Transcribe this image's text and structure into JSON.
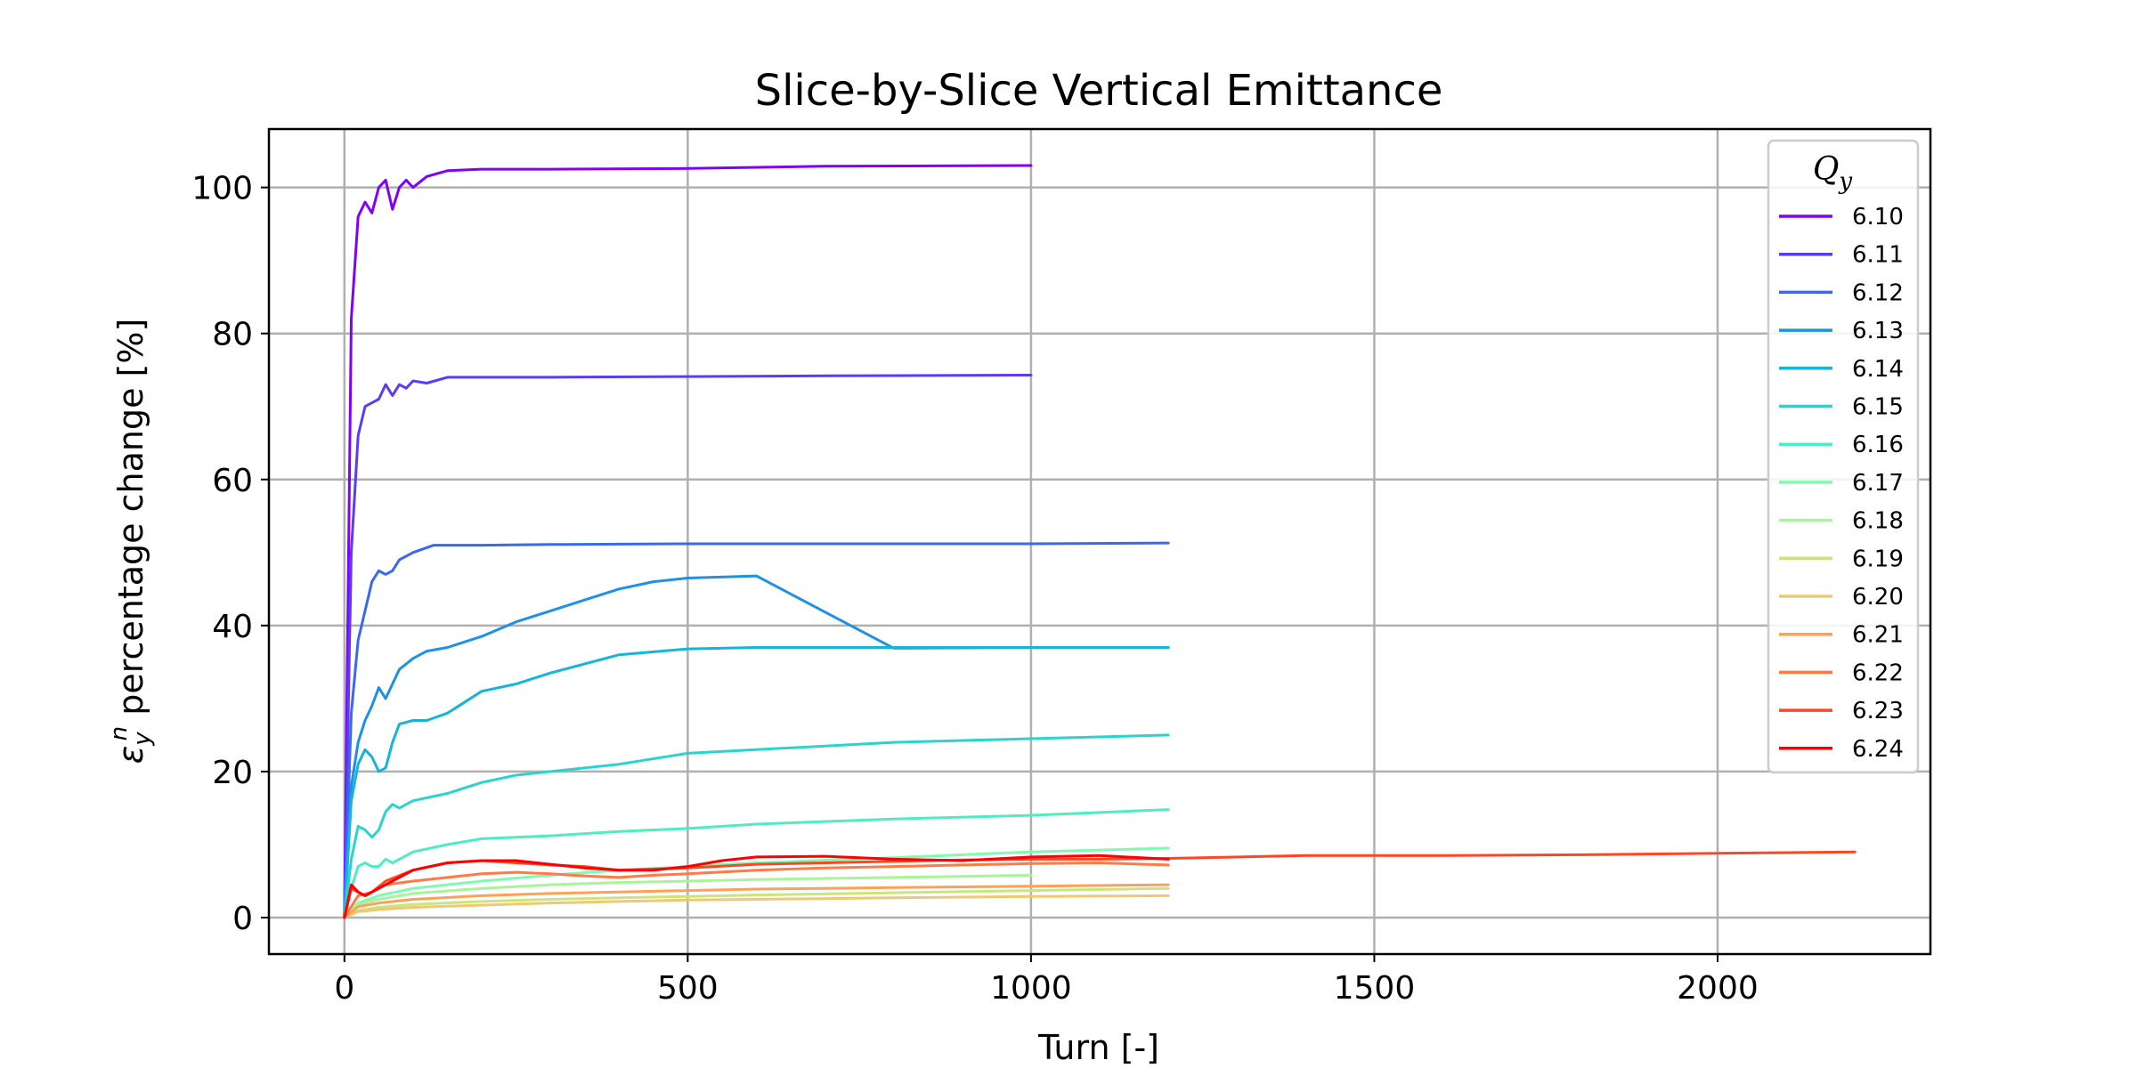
{
  "chart_data": {
    "type": "line",
    "title": "Slice-by-Slice Vertical Emittance",
    "xlabel": "Turn [-]",
    "ylabel_main": "ε",
    "ylabel_sub": "y",
    "ylabel_sup": "n",
    "ylabel_rest": " percentage change [%]",
    "xlim": [
      -110,
      2310
    ],
    "ylim": [
      -5,
      108
    ],
    "grid": true,
    "x_ticks": [
      0,
      500,
      1000,
      1500,
      2000
    ],
    "y_ticks": [
      0,
      20,
      40,
      60,
      80,
      100
    ],
    "legend": {
      "placement": "top-right",
      "title_main": "Q",
      "title_sub": "y"
    },
    "series": [
      {
        "name": "6.10",
        "color": "#8000ff",
        "x": [
          0,
          10,
          20,
          30,
          40,
          50,
          60,
          70,
          80,
          90,
          100,
          120,
          150,
          200,
          300,
          500,
          700,
          1000
        ],
        "y": [
          0,
          82,
          96,
          98,
          96.5,
          100,
          101,
          97,
          100,
          101,
          100,
          101.5,
          102.3,
          102.5,
          102.5,
          102.6,
          102.9,
          103
        ]
      },
      {
        "name": "6.11",
        "color": "#5a3bfa",
        "x": [
          0,
          10,
          20,
          30,
          40,
          50,
          60,
          70,
          80,
          90,
          100,
          120,
          150,
          200,
          300,
          500,
          700,
          1000
        ],
        "y": [
          0,
          50,
          66,
          70,
          70.5,
          71,
          73,
          71.5,
          73,
          72.5,
          73.5,
          73.2,
          74,
          74,
          74,
          74.1,
          74.2,
          74.3
        ]
      },
      {
        "name": "6.12",
        "color": "#3a68f0",
        "x": [
          0,
          10,
          20,
          30,
          40,
          50,
          60,
          70,
          80,
          100,
          130,
          150,
          200,
          300,
          500,
          700,
          1000,
          1200
        ],
        "y": [
          0,
          28,
          38,
          42,
          46,
          47.5,
          47,
          47.5,
          49,
          50,
          51,
          51,
          51,
          51.1,
          51.2,
          51.2,
          51.2,
          51.3
        ]
      },
      {
        "name": "6.13",
        "color": "#1e90e6",
        "x": [
          0,
          10,
          20,
          30,
          40,
          50,
          60,
          70,
          80,
          100,
          120,
          150,
          200,
          250,
          300,
          350,
          400,
          450,
          500,
          600,
          800,
          1000,
          1200
        ],
        "y": [
          0,
          18,
          24,
          27,
          29,
          31.5,
          30,
          32,
          34,
          35.5,
          36.5,
          37,
          38.5,
          40.5,
          42,
          43.5,
          45,
          46,
          46.5,
          46.8,
          36.9,
          37,
          37
        ]
      },
      {
        "name": "6.14",
        "color": "#16b4da",
        "x": [
          0,
          10,
          20,
          30,
          40,
          50,
          60,
          70,
          80,
          100,
          120,
          150,
          200,
          250,
          300,
          400,
          500,
          600,
          800,
          1000,
          1200
        ],
        "y": [
          0,
          16,
          21,
          23,
          22,
          20,
          20.5,
          24,
          26.5,
          27,
          27,
          28,
          31,
          32,
          33.5,
          36,
          36.8,
          37,
          37,
          37,
          37
        ]
      },
      {
        "name": "6.15",
        "color": "#2ad4cc",
        "x": [
          0,
          10,
          20,
          30,
          40,
          50,
          60,
          70,
          80,
          100,
          150,
          200,
          250,
          300,
          400,
          500,
          600,
          800,
          1000,
          1200
        ],
        "y": [
          0,
          8,
          12.5,
          12,
          11,
          12,
          14.5,
          15.5,
          15,
          16,
          17,
          18.5,
          19.5,
          20,
          21,
          22.5,
          23,
          24,
          24.5,
          25
        ]
      },
      {
        "name": "6.16",
        "color": "#4eecc0",
        "x": [
          0,
          10,
          20,
          30,
          40,
          50,
          60,
          70,
          80,
          100,
          150,
          200,
          300,
          400,
          500,
          600,
          800,
          1000,
          1200
        ],
        "y": [
          0,
          4,
          7,
          7.5,
          7,
          7,
          8,
          7.5,
          8,
          9,
          10,
          10.8,
          11.2,
          11.8,
          12.2,
          12.8,
          13.5,
          14,
          14.8
        ]
      },
      {
        "name": "6.17",
        "color": "#7ffab0",
        "x": [
          0,
          20,
          50,
          100,
          200,
          300,
          400,
          500,
          600,
          800,
          1000,
          1200
        ],
        "y": [
          0,
          2,
          3,
          4,
          5,
          5.8,
          6.5,
          7,
          7.5,
          8.2,
          9,
          9.5
        ]
      },
      {
        "name": "6.18",
        "color": "#a8f49a",
        "x": [
          0,
          20,
          50,
          100,
          200,
          300,
          400,
          500,
          600,
          800,
          1000
        ],
        "y": [
          0,
          1.8,
          2.5,
          3.3,
          4,
          4.5,
          4.8,
          5,
          5.2,
          5.5,
          5.8
        ]
      },
      {
        "name": "6.19",
        "color": "#cce47c",
        "x": [
          0,
          20,
          50,
          100,
          200,
          300,
          400,
          500,
          600,
          800,
          1000,
          1200
        ],
        "y": [
          0,
          1,
          1.4,
          1.8,
          2.2,
          2.5,
          2.7,
          2.9,
          3.1,
          3.4,
          3.7,
          4
        ]
      },
      {
        "name": "6.20",
        "color": "#f0c872",
        "x": [
          0,
          20,
          50,
          100,
          200,
          300,
          400,
          500,
          600,
          800,
          1000,
          1200
        ],
        "y": [
          0,
          0.8,
          1.1,
          1.4,
          1.7,
          2,
          2.2,
          2.4,
          2.5,
          2.7,
          2.9,
          3
        ]
      },
      {
        "name": "6.21",
        "color": "#ffa057",
        "x": [
          0,
          20,
          50,
          100,
          200,
          300,
          400,
          500,
          600,
          800,
          1000,
          1200
        ],
        "y": [
          0,
          1.5,
          2,
          2.5,
          3,
          3.3,
          3.5,
          3.7,
          3.9,
          4.1,
          4.3,
          4.5
        ]
      },
      {
        "name": "6.22",
        "color": "#ff7a45",
        "x": [
          0,
          20,
          40,
          60,
          100,
          150,
          200,
          250,
          300,
          350,
          400,
          450,
          500,
          600,
          700,
          800,
          900,
          1000,
          1100,
          1200
        ],
        "y": [
          0,
          3,
          3.5,
          4.5,
          5,
          5.5,
          6,
          6.2,
          6,
          5.7,
          5.5,
          5.8,
          6,
          6.5,
          6.8,
          7,
          7.2,
          7.4,
          7.5,
          7.2
        ]
      },
      {
        "name": "6.23",
        "color": "#ff4622",
        "x": [
          0,
          10,
          20,
          30,
          40,
          60,
          100,
          150,
          200,
          250,
          300,
          350,
          400,
          500,
          600,
          700,
          800,
          900,
          1000,
          1100,
          1200,
          1400,
          1600,
          1800,
          2000,
          2200
        ],
        "y": [
          0,
          4,
          3.5,
          3,
          3.5,
          5,
          6.5,
          7.5,
          7.8,
          7.5,
          7.2,
          7,
          6.5,
          6.8,
          7.3,
          7.5,
          7.7,
          7.9,
          8,
          8,
          8.1,
          8.5,
          8.5,
          8.6,
          8.8,
          9
        ]
      },
      {
        "name": "6.24",
        "color": "#ff0000",
        "x": [
          0,
          10,
          20,
          30,
          40,
          60,
          100,
          150,
          200,
          250,
          300,
          350,
          400,
          450,
          500,
          550,
          600,
          700,
          800,
          900,
          1000,
          1100,
          1200
        ],
        "y": [
          0,
          4.5,
          3.5,
          3,
          3.5,
          4.5,
          6.5,
          7.5,
          7.8,
          7.8,
          7.3,
          6.8,
          6.5,
          6.5,
          7,
          7.8,
          8.3,
          8.4,
          8,
          7.8,
          8.3,
          8.5,
          8
        ]
      }
    ]
  }
}
